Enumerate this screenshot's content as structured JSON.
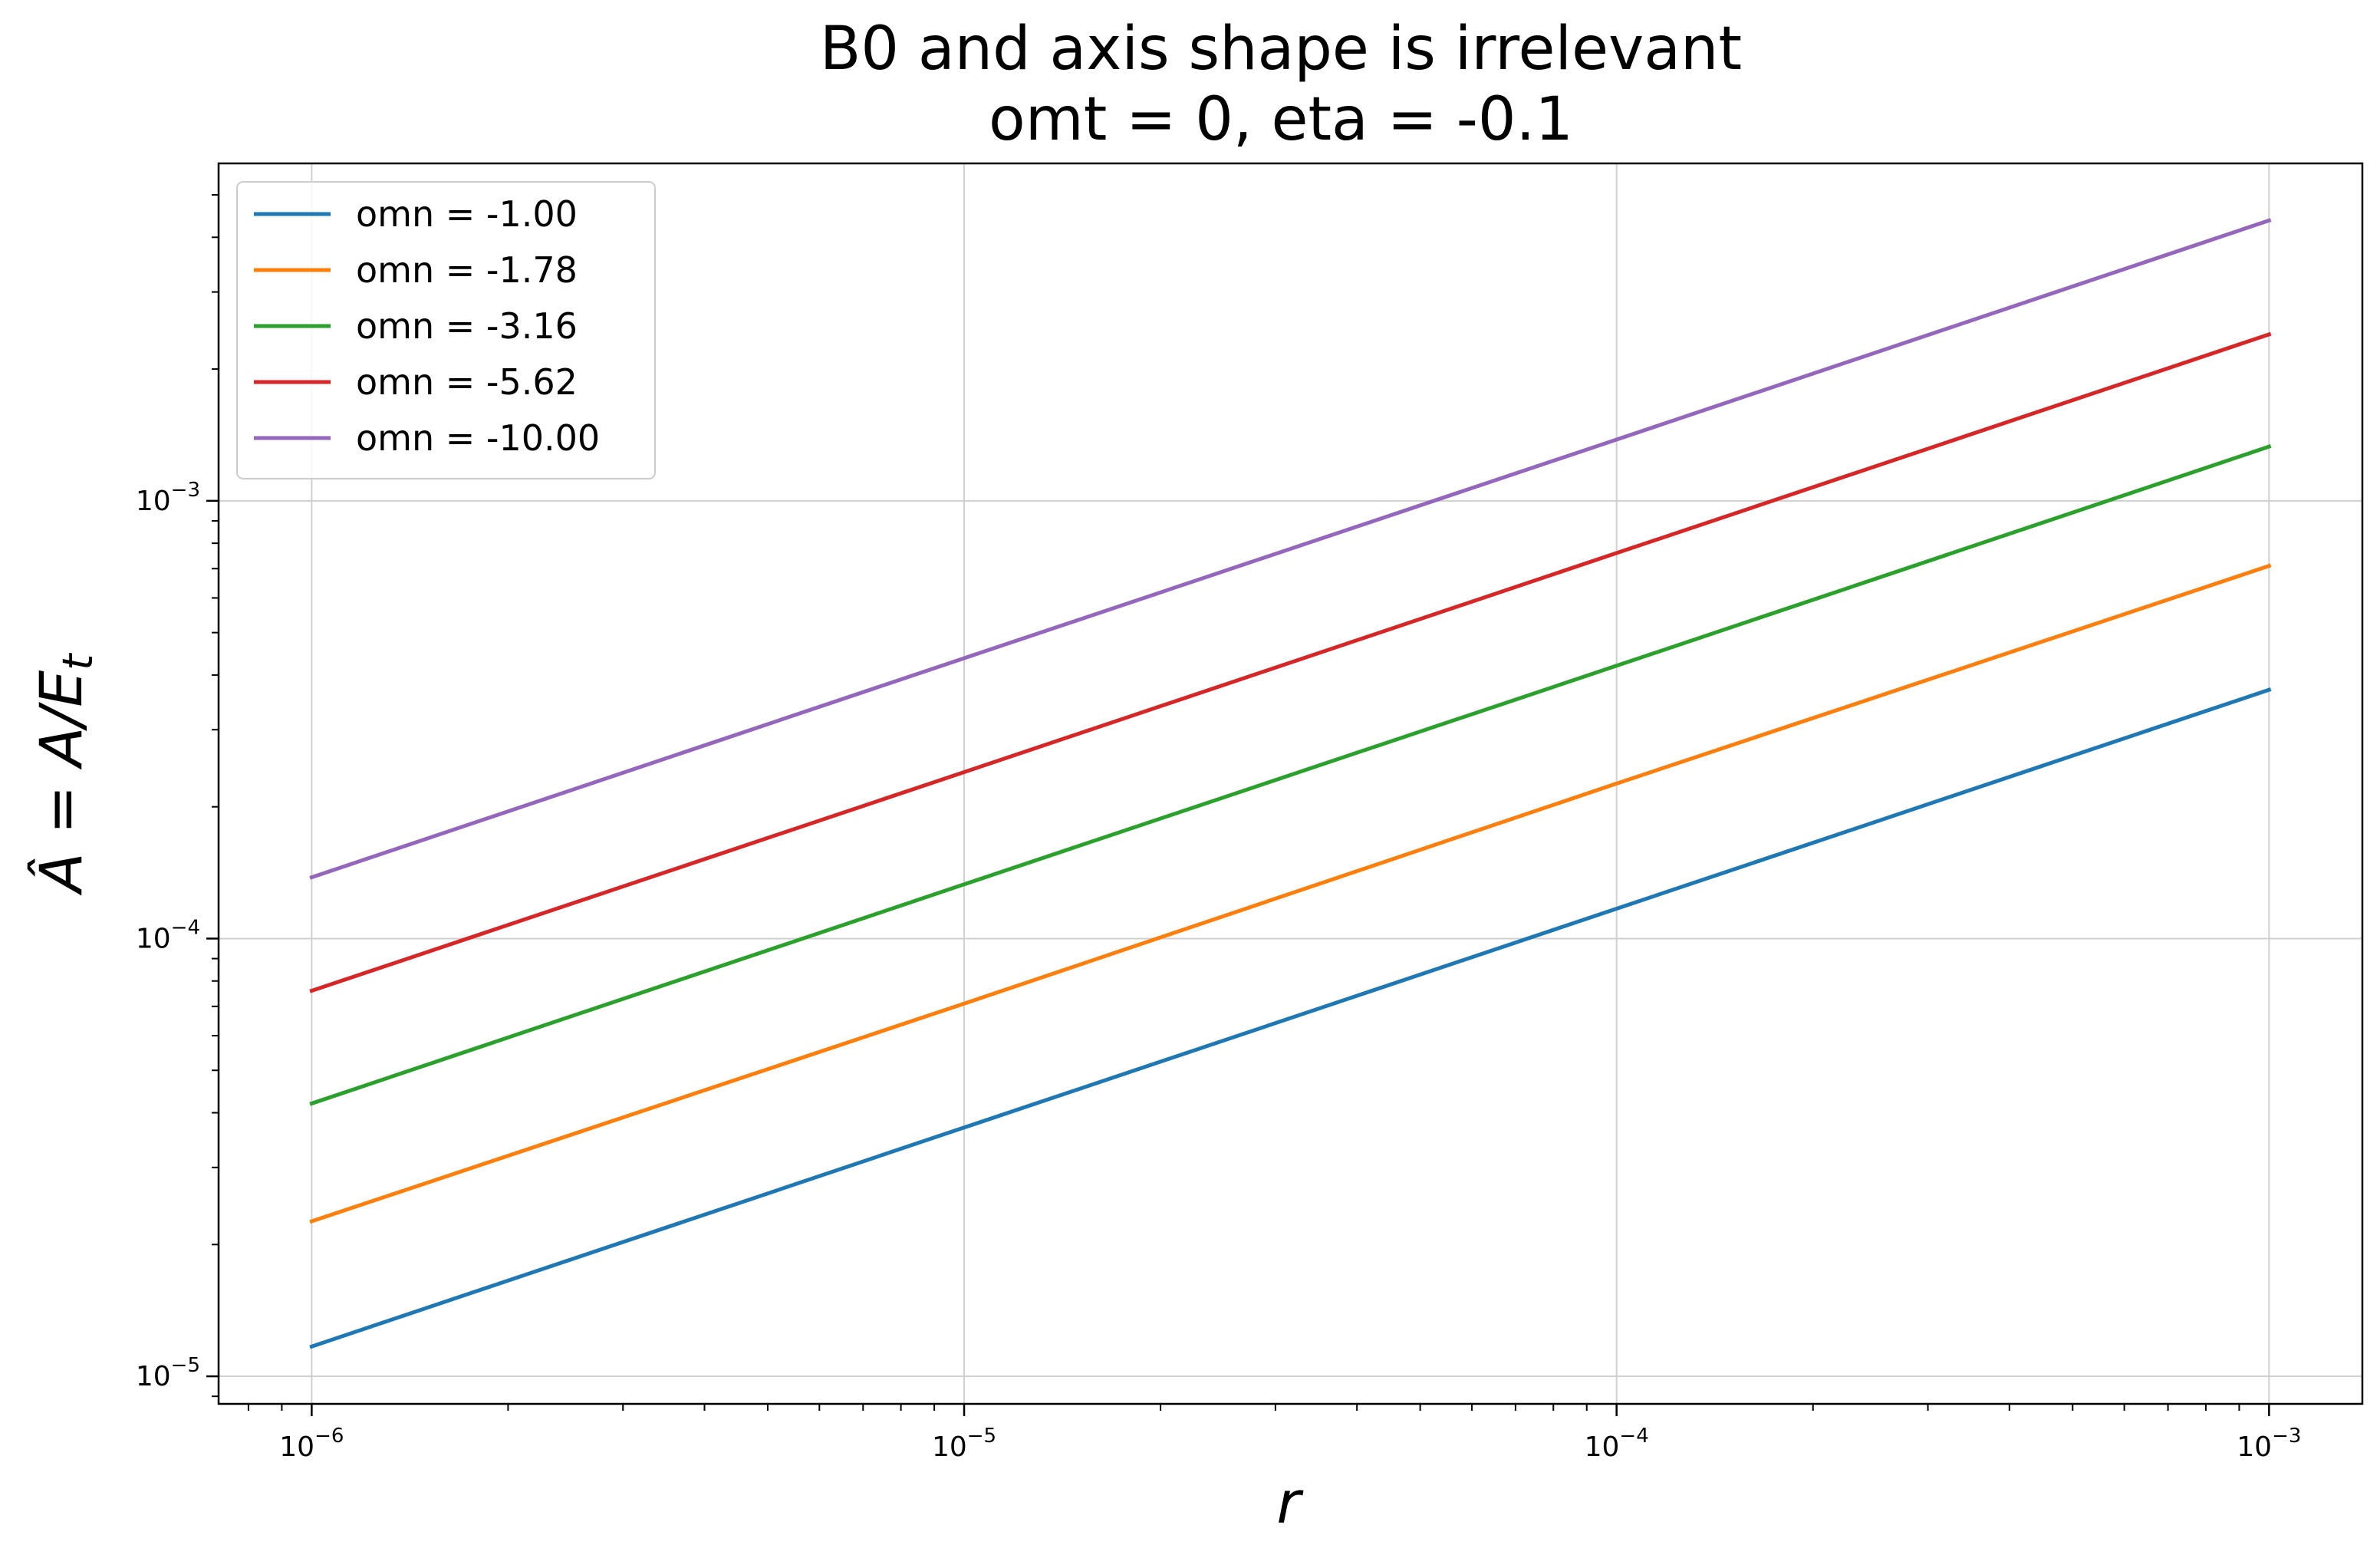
{
  "chart_data": {
    "type": "line",
    "title": [
      "B0 and axis shape is irrelevant",
      "omt = 0, eta = -0.1"
    ],
    "xlabel": "r",
    "ylabel": "Â = A/E_t",
    "xscale": "log",
    "yscale": "log",
    "xlim": [
      7.2e-07,
      0.00139
    ],
    "ylim": [
      8.65e-06,
      0.0059
    ],
    "x_ticks": [
      {
        "base": "10",
        "exp": "−6",
        "value": 1e-06
      },
      {
        "base": "10",
        "exp": "−5",
        "value": 1e-05
      },
      {
        "base": "10",
        "exp": "−4",
        "value": 0.0001
      },
      {
        "base": "10",
        "exp": "−3",
        "value": 0.001
      }
    ],
    "y_ticks": [
      {
        "base": "10",
        "exp": "−5",
        "value": 1e-05
      },
      {
        "base": "10",
        "exp": "−4",
        "value": 0.0001
      },
      {
        "base": "10",
        "exp": "−3",
        "value": 0.001
      }
    ],
    "grid": true,
    "legend_position": "top-left",
    "series": [
      {
        "name": "omn = -1.00",
        "color": "#1f77b4",
        "x": [
          1e-06,
          1e-05,
          0.0001,
          0.001
        ],
        "y": [
          1.17e-05,
          3.7e-05,
          0.000117,
          0.00037
        ]
      },
      {
        "name": "omn = -1.78",
        "color": "#ff7f0e",
        "x": [
          1e-06,
          1e-05,
          0.0001,
          0.001
        ],
        "y": [
          2.26e-05,
          7.1e-05,
          0.000226,
          0.00071
        ]
      },
      {
        "name": "omn = -3.16",
        "color": "#2ca02c",
        "x": [
          1e-06,
          1e-05,
          0.0001,
          0.001
        ],
        "y": [
          4.2e-05,
          0.000133,
          0.00042,
          0.00133
        ]
      },
      {
        "name": "omn = -5.62",
        "color": "#d62728",
        "x": [
          1e-06,
          1e-05,
          0.0001,
          0.001
        ],
        "y": [
          7.6e-05,
          0.00024,
          0.00076,
          0.0024
        ]
      },
      {
        "name": "omn = -10.00",
        "color": "#9467bd",
        "x": [
          1e-06,
          1e-05,
          0.0001,
          0.001
        ],
        "y": [
          0.000138,
          0.000437,
          0.00138,
          0.00437
        ]
      }
    ]
  }
}
